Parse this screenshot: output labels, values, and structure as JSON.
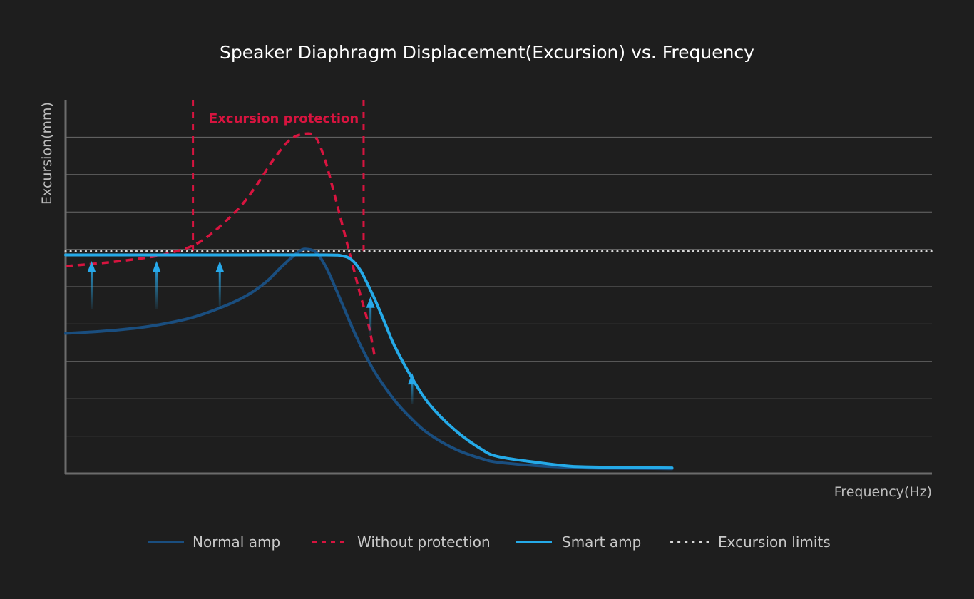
{
  "chart_data": {
    "type": "line",
    "title": "Speaker Diaphragm Displacement(Excursion) vs. Frequency",
    "xlabel": "Frequency(Hz)",
    "ylabel": "Excursion(mm)",
    "xlim": [
      0,
      100
    ],
    "ylim": [
      0,
      10
    ],
    "grid": true,
    "x_ticks_labeled": false,
    "y_ticks_labeled": false,
    "legend_position": "bottom",
    "colors": {
      "background": "#1e1e1e",
      "grid": "#6a6a6a",
      "axis": "#6c6c6c",
      "normal_amp": "#1a4e7f",
      "without_protection": "#d7143f",
      "smart_amp": "#25aae8",
      "excursion_limits": "#d8d8d8",
      "boost_arrow": "#27a9ea",
      "title": "#ffffff",
      "axis_label": "#bdbdbd",
      "legend_text": "#c9c9c9",
      "annotation": "#d7143f"
    },
    "series": [
      {
        "name": "Normal amp",
        "style": "solid",
        "x": [
          0,
          5,
          10,
          15,
          20,
          23,
          25,
          27,
          28,
          29,
          30,
          31,
          32,
          33,
          34,
          35,
          36,
          38,
          40,
          42,
          45,
          48,
          50,
          55,
          60,
          65,
          70
        ],
        "y": [
          3.75,
          3.82,
          3.95,
          4.2,
          4.65,
          5.1,
          5.55,
          5.95,
          6.0,
          5.9,
          5.55,
          5.05,
          4.5,
          3.95,
          3.45,
          3.0,
          2.6,
          1.95,
          1.45,
          1.05,
          0.65,
          0.4,
          0.3,
          0.2,
          0.15,
          0.14,
          0.13
        ]
      },
      {
        "name": "Without protection",
        "style": "dashed",
        "x": [
          0,
          5,
          10,
          12,
          14.7,
          17,
          20,
          22,
          24,
          26,
          28,
          29,
          30,
          31,
          32,
          33,
          34,
          35,
          35.7
        ],
        "y": [
          5.55,
          5.65,
          5.8,
          5.9,
          6.1,
          6.45,
          7.1,
          7.7,
          8.4,
          8.95,
          9.1,
          8.95,
          8.35,
          7.5,
          6.6,
          5.7,
          4.8,
          3.95,
          3.1
        ]
      },
      {
        "name": "Smart amp",
        "style": "solid",
        "x": [
          0,
          10,
          20,
          30,
          32,
          33,
          34,
          35,
          36,
          37,
          38,
          40,
          42,
          45,
          48,
          50,
          55,
          58,
          60,
          65,
          70
        ],
        "y": [
          5.85,
          5.85,
          5.85,
          5.85,
          5.82,
          5.72,
          5.45,
          5.0,
          4.5,
          3.95,
          3.4,
          2.55,
          1.85,
          1.15,
          0.65,
          0.45,
          0.28,
          0.2,
          0.18,
          0.16,
          0.15
        ]
      },
      {
        "name": "Excursion limits",
        "style": "dotted",
        "x": [
          0,
          100
        ],
        "y": [
          5.95,
          5.95
        ]
      }
    ],
    "protection_region": {
      "label": "Excursion protection",
      "x_start": 14.7,
      "x_end": 34.4
    },
    "boost_arrows": [
      {
        "x": 3.0,
        "y_from": 4.4,
        "y_to": 5.65
      },
      {
        "x": 10.5,
        "y_from": 4.4,
        "y_to": 5.65
      },
      {
        "x": 17.8,
        "y_from": 4.4,
        "y_to": 5.65
      },
      {
        "x": 35.2,
        "y_from": 3.7,
        "y_to": 4.7
      },
      {
        "x": 40.0,
        "y_from": 1.85,
        "y_to": 2.65
      }
    ]
  }
}
